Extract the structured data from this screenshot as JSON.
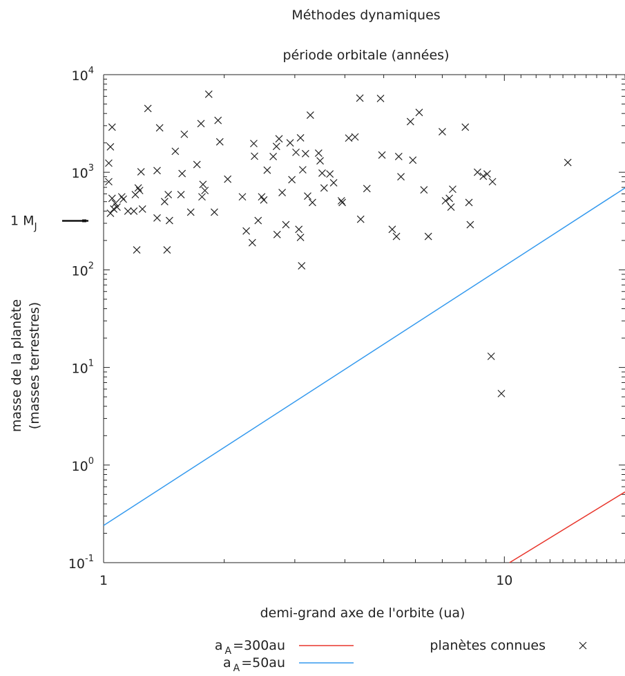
{
  "chart_data": {
    "type": "scatter",
    "title": "Méthodes dynamiques",
    "top_axis_label": "période orbitale (années)",
    "xlabel": "demi-grand axe de l'orbite (ua)",
    "ylabel_line1": "masse de la planète",
    "ylabel_line2": "(masses terrestres)",
    "x_scale": "log",
    "y_scale": "log",
    "xlim": [
      1,
      20
    ],
    "ylim": [
      0.1,
      10000
    ],
    "x_ticks": [
      {
        "value": 1,
        "label": "1"
      },
      {
        "value": 10,
        "label": "10"
      }
    ],
    "y_ticks": [
      {
        "value": 10000,
        "base": "10",
        "exp": "4"
      },
      {
        "value": 1000,
        "base": "10",
        "exp": "3"
      },
      {
        "value": 100,
        "base": "10",
        "exp": "2"
      },
      {
        "value": 10,
        "base": "10",
        "exp": "1"
      },
      {
        "value": 1,
        "base": "10",
        "exp": "0"
      },
      {
        "value": 0.1,
        "base": "10",
        "exp": "-1"
      }
    ],
    "jupiter_marker": {
      "label": "1 M",
      "subscript": "J",
      "value": 318
    },
    "grid": false,
    "legend_position": "bottom",
    "series": [
      {
        "name": "a",
        "name_subscript": "A",
        "name_suffix": "=300au",
        "kind": "line",
        "color": "#e8352b",
        "points": [
          [
            10.3,
            0.1
          ],
          [
            20,
            0.53
          ]
        ]
      },
      {
        "name": "a",
        "name_subscript": "A",
        "name_suffix": "=50au",
        "kind": "line",
        "color": "#3399ee",
        "points": [
          [
            1,
            0.24
          ],
          [
            20,
            690
          ]
        ]
      },
      {
        "name": "planètes connues",
        "kind": "scatter",
        "marker": "x",
        "color": "#222222",
        "points": [
          [
            1.03,
            1240
          ],
          [
            1.04,
            1820
          ],
          [
            1.05,
            2900
          ],
          [
            1.03,
            800
          ],
          [
            1.05,
            540
          ],
          [
            1.07,
            480
          ],
          [
            1.04,
            380
          ],
          [
            1.06,
            420
          ],
          [
            1.08,
            440
          ],
          [
            1.11,
            560
          ],
          [
            1.12,
            530
          ],
          [
            1.15,
            400
          ],
          [
            1.19,
            400
          ],
          [
            1.2,
            590
          ],
          [
            1.22,
            690
          ],
          [
            1.23,
            650
          ],
          [
            1.24,
            1010
          ],
          [
            1.25,
            420
          ],
          [
            1.21,
            160
          ],
          [
            1.29,
            4500
          ],
          [
            1.36,
            1040
          ],
          [
            1.36,
            340
          ],
          [
            1.38,
            2850
          ],
          [
            1.42,
            500
          ],
          [
            1.44,
            160
          ],
          [
            1.45,
            590
          ],
          [
            1.46,
            320
          ],
          [
            1.51,
            1640
          ],
          [
            1.56,
            590
          ],
          [
            1.57,
            970
          ],
          [
            1.59,
            2450
          ],
          [
            1.65,
            390
          ],
          [
            1.71,
            1200
          ],
          [
            1.75,
            3150
          ],
          [
            1.77,
            750
          ],
          [
            1.79,
            650
          ],
          [
            1.76,
            560
          ],
          [
            1.83,
            6300
          ],
          [
            1.89,
            390
          ],
          [
            1.93,
            3400
          ],
          [
            1.95,
            2050
          ],
          [
            2.04,
            850
          ],
          [
            2.22,
            560
          ],
          [
            2.27,
            250
          ],
          [
            2.35,
            190
          ],
          [
            2.37,
            1970
          ],
          [
            2.38,
            1460
          ],
          [
            2.43,
            320
          ],
          [
            2.48,
            560
          ],
          [
            2.51,
            520
          ],
          [
            2.56,
            1050
          ],
          [
            2.65,
            1450
          ],
          [
            2.7,
            1840
          ],
          [
            2.71,
            230
          ],
          [
            2.74,
            2200
          ],
          [
            2.79,
            620
          ],
          [
            2.85,
            290
          ],
          [
            2.92,
            2000
          ],
          [
            2.95,
            840
          ],
          [
            3.02,
            1600
          ],
          [
            3.07,
            260
          ],
          [
            3.1,
            2250
          ],
          [
            3.1,
            215
          ],
          [
            3.12,
            110
          ],
          [
            3.14,
            1060
          ],
          [
            3.19,
            1550
          ],
          [
            3.23,
            570
          ],
          [
            3.28,
            3850
          ],
          [
            3.32,
            490
          ],
          [
            3.44,
            1570
          ],
          [
            3.47,
            1310
          ],
          [
            3.51,
            980
          ],
          [
            3.55,
            690
          ],
          [
            3.67,
            960
          ],
          [
            3.75,
            780
          ],
          [
            3.92,
            510
          ],
          [
            3.94,
            490
          ],
          [
            4.09,
            2240
          ],
          [
            4.24,
            2300
          ],
          [
            4.36,
            5750
          ],
          [
            4.38,
            330
          ],
          [
            4.54,
            680
          ],
          [
            4.91,
            5700
          ],
          [
            4.95,
            1500
          ],
          [
            5.25,
            260
          ],
          [
            5.38,
            220
          ],
          [
            5.45,
            1450
          ],
          [
            5.52,
            900
          ],
          [
            5.83,
            3300
          ],
          [
            5.91,
            1330
          ],
          [
            6.13,
            4100
          ],
          [
            6.3,
            660
          ],
          [
            6.46,
            220
          ],
          [
            7.0,
            2600
          ],
          [
            7.13,
            510
          ],
          [
            7.29,
            540
          ],
          [
            7.36,
            440
          ],
          [
            7.43,
            670
          ],
          [
            7.99,
            2900
          ],
          [
            8.16,
            490
          ],
          [
            8.22,
            290
          ],
          [
            8.57,
            1000
          ],
          [
            8.86,
            910
          ],
          [
            9.06,
            960
          ],
          [
            9.34,
            800
          ],
          [
            9.27,
            13
          ],
          [
            9.83,
            5.4
          ],
          [
            14.4,
            1260
          ]
        ]
      }
    ]
  }
}
